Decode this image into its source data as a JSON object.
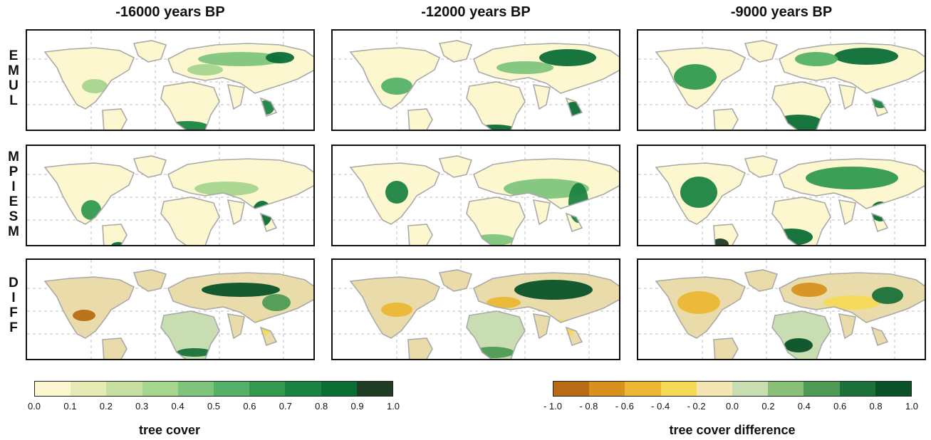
{
  "columns": [
    "-16000 years BP",
    "-12000 years BP",
    "-9000 years BP"
  ],
  "rows": [
    {
      "label_letters": [
        "E",
        "M",
        "U",
        "L"
      ]
    },
    {
      "label_letters": [
        "M",
        "P",
        "I",
        "E",
        "S",
        "M"
      ]
    },
    {
      "label_letters": [
        "D",
        "I",
        "F",
        "F"
      ]
    }
  ],
  "colorbar_left": {
    "label": "tree cover",
    "ticks": [
      "0.0",
      "0.1",
      "0.2",
      "0.3",
      "0.4",
      "0.5",
      "0.6",
      "0.7",
      "0.8",
      "0.9",
      "1.0"
    ],
    "colors": [
      "#fdf7cf",
      "#e6ebb6",
      "#c7e0a1",
      "#a6d58e",
      "#7fc47d",
      "#55b168",
      "#33994f",
      "#1c8442",
      "#0b6e35",
      "#1f3d25"
    ]
  },
  "colorbar_right": {
    "label": "tree cover difference",
    "ticks": [
      "- 1.0",
      "- 0.8",
      "- 0.6",
      "- 0.4",
      "- 0.2",
      "0.0",
      "0.2",
      "0.4",
      "0.6",
      "0.8",
      "1.0"
    ],
    "colors": [
      "#b86b15",
      "#d8901e",
      "#ecb734",
      "#f5d957",
      "#f4e6b2",
      "#c9ddb3",
      "#88c078",
      "#4f9a55",
      "#1b7139",
      "#0a5129"
    ]
  }
}
